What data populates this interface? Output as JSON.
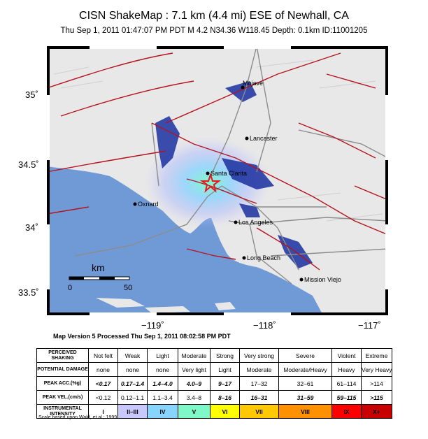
{
  "title": "CISN ShakeMap : 7.1 km (4.4 mi) ESE of Newhall, CA",
  "subtitle": "Thu Sep  1, 2011 01:47:07 PM PDT    M 4.2    N34.36 W118.45    Depth: 0.1km    ID:11001205",
  "map": {
    "lat_ticks": [
      "35˚",
      "34.5˚",
      "34˚",
      "33.5˚"
    ],
    "lon_ticks": [
      "−119˚",
      "−118˚",
      "−117˚"
    ],
    "cities": [
      "Mojave",
      "Lancaster",
      "Santa Clarita",
      "Oxnard",
      "Los Angeles",
      "Long Beach",
      "Mission Viejo"
    ],
    "scale_bar": {
      "unit": "km",
      "start": "0",
      "end": "50"
    },
    "colors": {
      "ocean": "#6f9ad6",
      "land": "#e8e8e8",
      "fault": "#b5141e",
      "road": "#8c8c8c",
      "epicenter": "#e4191c"
    }
  },
  "version_line": "Map Version 5 Processed Thu Sep  1, 2011 08:02:58 PM PDT",
  "legend": {
    "rows": [
      {
        "header": "PERCEIVED SHAKING",
        "cells": [
          "Not felt",
          "Weak",
          "Light",
          "Moderate",
          "Strong",
          "Very strong",
          "Severe",
          "Violent",
          "Extreme"
        ]
      },
      {
        "header": "POTENTIAL DAMAGE",
        "cells": [
          "none",
          "none",
          "none",
          "Very light",
          "Light",
          "Moderate",
          "Moderate/Heavy",
          "Heavy",
          "Very Heavy"
        ]
      },
      {
        "header": "PEAK ACC.(%g)",
        "cells": [
          "<0.17",
          "0.17–1.4",
          "1.4–4.0",
          "4.0–9",
          "9–17",
          "17–32",
          "32–61",
          "61–114",
          ">114"
        ]
      },
      {
        "header": "PEAK VEL.(cm/s)",
        "cells": [
          "<0.12",
          "0.12–1.1",
          "1.1–3.4",
          "3.4–8",
          "8–16",
          "16–31",
          "31–59",
          "59–115",
          ">115"
        ]
      },
      {
        "header": "INSTRUMENTAL INTENSITY",
        "cells": [
          "I",
          "II–III",
          "IV",
          "V",
          "VI",
          "VII",
          "VIII",
          "IX",
          "X+"
        ]
      }
    ],
    "intensity_colors": [
      "#ffffff",
      "#c8c8ff",
      "#87d4ff",
      "#7ff8c9",
      "#ffff00",
      "#ffc800",
      "#ff9100",
      "#ff0000",
      "#c80000"
    ]
  },
  "footnote": "Scale based upon Wald, et al.; 1999"
}
